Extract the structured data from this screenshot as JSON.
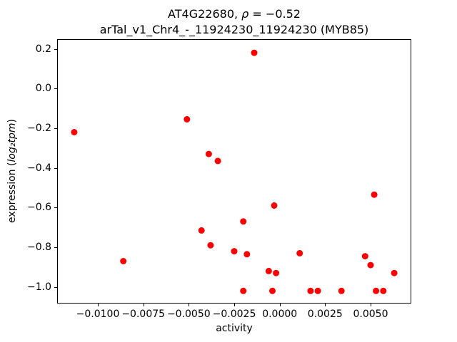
{
  "title": {
    "prefix": "AT4G22680, ",
    "rho": "ρ",
    "rest": " = −0.52",
    "line2": "arTal_v1_Chr4_-_11924230_11924230 (MYB85)"
  },
  "xlabel": "activity",
  "ylabel": {
    "prefix": "expression (",
    "math": "log₂tpm",
    "suffix": ")"
  },
  "chart_data": {
    "type": "scatter",
    "title": "AT4G22680, ρ = −0.52\narTal_v1_Chr4_-_11924230_11924230 (MYB85)",
    "xlabel": "activity",
    "ylabel": "expression (log2 tpm)",
    "legend": "none",
    "grid": false,
    "marker_color": "#ff0000",
    "marker_radius_px": 4.5,
    "xlim": [
      -0.0122,
      0.0072
    ],
    "ylim": [
      -1.08,
      0.245
    ],
    "xtick_values": [
      -0.01,
      -0.0075,
      -0.005,
      -0.0025,
      0.0,
      0.0025,
      0.005
    ],
    "xtick_labels": [
      "−0.0100",
      "−0.0075",
      "−0.0050",
      "−0.0025",
      "0.0000",
      "0.0025",
      "0.0050"
    ],
    "ytick_values": [
      0.2,
      0.0,
      -0.2,
      -0.4,
      -0.6,
      -0.8,
      -1.0
    ],
    "ytick_labels": [
      "0.2",
      "0.0",
      "−0.2",
      "−0.4",
      "−0.6",
      "−0.8",
      "−1.0"
    ],
    "points": [
      [
        -0.0113,
        -0.22
      ],
      [
        -0.0086,
        -0.87
      ],
      [
        -0.0051,
        -0.155
      ],
      [
        -0.0043,
        -0.715
      ],
      [
        -0.0039,
        -0.33
      ],
      [
        -0.0038,
        -0.79
      ],
      [
        -0.0034,
        -0.365
      ],
      [
        -0.0025,
        -0.82
      ],
      [
        -0.002,
        -0.67
      ],
      [
        -0.002,
        -1.02
      ],
      [
        -0.0018,
        -0.835
      ],
      [
        -0.0014,
        0.18
      ],
      [
        -0.0006,
        -0.92
      ],
      [
        -0.0004,
        -1.02
      ],
      [
        -0.0003,
        -0.59
      ],
      [
        -0.0002,
        -0.93
      ],
      [
        0.0011,
        -0.83
      ],
      [
        0.0017,
        -1.02
      ],
      [
        0.0021,
        -1.02
      ],
      [
        0.0034,
        -1.02
      ],
      [
        0.0047,
        -0.845
      ],
      [
        0.005,
        -0.89
      ],
      [
        0.0052,
        -0.535
      ],
      [
        0.0053,
        -1.02
      ],
      [
        0.0057,
        -1.02
      ],
      [
        0.0063,
        -0.93
      ]
    ]
  }
}
